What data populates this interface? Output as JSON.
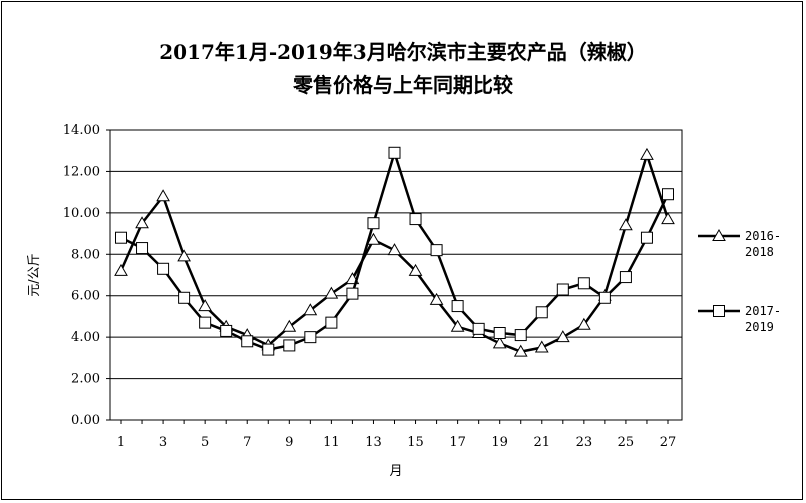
{
  "chart_data": {
    "type": "line",
    "title_line1": "2017年1月-2019年3月哈尔滨市主要农产品（辣椒）",
    "title_line2": "零售价格与上年同期比较",
    "xlabel": "月",
    "ylabel": "元/公斤",
    "ylim": [
      0,
      14
    ],
    "yticks": [
      "0.00",
      "2.00",
      "4.00",
      "6.00",
      "8.00",
      "10.00",
      "12.00",
      "14.00"
    ],
    "xticks": [
      "1",
      "3",
      "5",
      "7",
      "9",
      "11",
      "13",
      "15",
      "17",
      "19",
      "21",
      "23",
      "25",
      "27"
    ],
    "x": [
      1,
      2,
      3,
      4,
      5,
      6,
      7,
      8,
      9,
      10,
      11,
      12,
      13,
      14,
      15,
      16,
      17,
      18,
      19,
      20,
      21,
      22,
      23,
      24,
      25,
      26,
      27
    ],
    "grid": true,
    "legend_position": "right",
    "series": [
      {
        "name_line1": "2016-",
        "name_line2": "2018",
        "marker": "triangle",
        "color": "#000000",
        "values": [
          7.2,
          9.5,
          10.8,
          7.9,
          5.5,
          4.5,
          4.1,
          3.6,
          4.5,
          5.3,
          6.1,
          6.8,
          8.7,
          8.2,
          7.2,
          5.8,
          4.5,
          4.2,
          3.7,
          3.3,
          3.5,
          4.0,
          4.6,
          6.0,
          9.4,
          12.8,
          9.7
        ]
      },
      {
        "name_line1": "2017-",
        "name_line2": "2019",
        "marker": "square",
        "color": "#000000",
        "values": [
          8.8,
          8.3,
          7.3,
          5.9,
          4.7,
          4.3,
          3.8,
          3.4,
          3.6,
          4.0,
          4.7,
          6.1,
          9.5,
          12.9,
          9.7,
          8.2,
          5.5,
          4.4,
          4.2,
          4.1,
          5.2,
          6.3,
          6.6,
          5.9,
          6.9,
          8.8,
          10.9
        ]
      }
    ]
  }
}
